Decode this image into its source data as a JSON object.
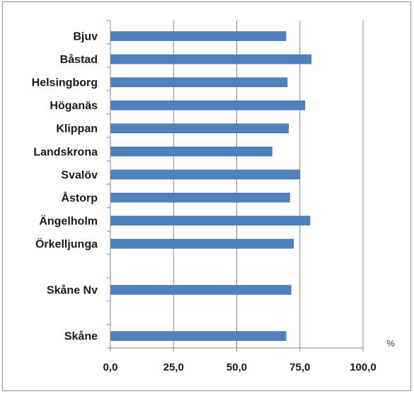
{
  "chart_data": {
    "type": "bar",
    "orientation": "horizontal",
    "categories": [
      "Bjuv",
      "Båstad",
      "Helsingborg",
      "Höganäs",
      "Klippan",
      "Landskrona",
      "Svalöv",
      "Åstorp",
      "Ängelholm",
      "Örkelljunga",
      "",
      "Skåne Nv",
      "",
      "Skåne"
    ],
    "values": [
      69.5,
      79.5,
      70.0,
      77.0,
      70.5,
      64.0,
      75.0,
      71.0,
      79.0,
      72.5,
      null,
      71.5,
      null,
      69.5
    ],
    "xlim": [
      0,
      100
    ],
    "xticks": [
      0,
      25,
      50,
      75,
      100
    ],
    "xtick_labels": [
      "0,0",
      "25,0",
      "50,0",
      "75,0",
      "100,0"
    ],
    "unit_label": "%",
    "title": "",
    "xlabel": "",
    "ylabel": "",
    "grid": "vertical",
    "legend": "none",
    "colors": {
      "bar": "#4f81bd",
      "bar_edge": "#3a6aa5",
      "grid": "#868686",
      "axis": "#868686"
    }
  }
}
